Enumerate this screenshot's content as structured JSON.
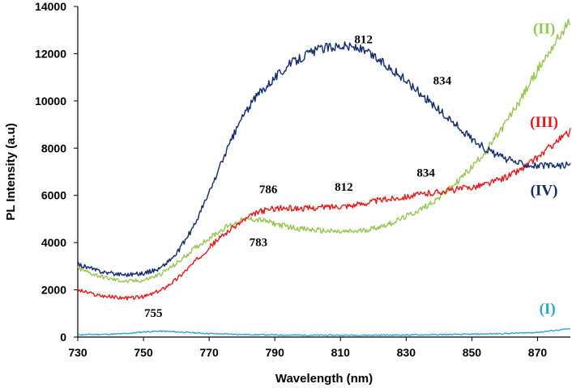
{
  "chart_data": {
    "type": "line",
    "xlabel": "Wavelength (nm)",
    "ylabel": "PL Intensity (a.u)",
    "xlim": [
      730,
      880
    ],
    "ylim": [
      0,
      14000
    ],
    "x_ticks": [
      730,
      750,
      770,
      790,
      810,
      830,
      850,
      870
    ],
    "y_ticks": [
      0,
      2000,
      4000,
      6000,
      8000,
      10000,
      12000,
      14000
    ],
    "grid": false,
    "legend": "none",
    "series": [
      {
        "name": "(I)",
        "color": "#2aa8d8",
        "x": [
          730,
          740,
          745,
          750,
          755,
          760,
          770,
          780,
          790,
          800,
          810,
          820,
          830,
          840,
          850,
          860,
          870,
          875,
          880
        ],
        "values": [
          100,
          120,
          150,
          220,
          250,
          220,
          150,
          110,
          90,
          80,
          80,
          80,
          90,
          100,
          120,
          150,
          200,
          280,
          350
        ]
      },
      {
        "name": "(II)",
        "color": "#92c84c",
        "x": [
          730,
          735,
          740,
          745,
          750,
          755,
          760,
          765,
          770,
          775,
          780,
          783,
          786,
          790,
          795,
          800,
          805,
          810,
          815,
          820,
          825,
          830,
          835,
          840,
          845,
          850,
          855,
          860,
          865,
          870,
          875,
          880
        ],
        "values": [
          2900,
          2650,
          2450,
          2350,
          2400,
          2650,
          3100,
          3700,
          4200,
          4650,
          4950,
          5000,
          4950,
          4800,
          4650,
          4550,
          4500,
          4450,
          4480,
          4600,
          4800,
          5100,
          5450,
          5900,
          6500,
          7200,
          8000,
          9000,
          10100,
          11300,
          12400,
          13400
        ]
      },
      {
        "name": "(III)",
        "color": "#e81818",
        "x": [
          730,
          735,
          740,
          745,
          750,
          755,
          760,
          765,
          770,
          775,
          780,
          785,
          790,
          795,
          800,
          805,
          810,
          815,
          820,
          825,
          830,
          835,
          840,
          845,
          850,
          855,
          860,
          865,
          870,
          875,
          880
        ],
        "values": [
          2000,
          1800,
          1700,
          1650,
          1700,
          1950,
          2450,
          3100,
          3800,
          4400,
          4900,
          5300,
          5450,
          5450,
          5450,
          5500,
          5550,
          5600,
          5750,
          5850,
          5950,
          6050,
          6150,
          6250,
          6350,
          6500,
          6750,
          7100,
          7600,
          8200,
          8700
        ]
      },
      {
        "name": "(IV)",
        "color": "#0f2a6e",
        "x": [
          730,
          735,
          740,
          745,
          750,
          755,
          760,
          765,
          770,
          775,
          780,
          785,
          790,
          795,
          800,
          805,
          810,
          815,
          820,
          825,
          830,
          835,
          840,
          845,
          850,
          855,
          860,
          865,
          870,
          875,
          880
        ],
        "values": [
          3100,
          2850,
          2700,
          2650,
          2700,
          2900,
          3500,
          4600,
          6100,
          7800,
          9300,
          10300,
          11000,
          11600,
          12000,
          12250,
          12350,
          12250,
          11900,
          11400,
          10850,
          10250,
          9600,
          9000,
          8400,
          7900,
          7550,
          7350,
          7250,
          7250,
          7300
        ]
      }
    ],
    "annotations": [
      {
        "text": "755",
        "x": 753,
        "y": 850
      },
      {
        "text": "783",
        "x": 785,
        "y": 3850
      },
      {
        "text": "786",
        "x": 788,
        "y": 6100
      },
      {
        "text": "812",
        "x": 811,
        "y": 6200
      },
      {
        "text": "834",
        "x": 836,
        "y": 6800
      },
      {
        "text": "812",
        "x": 817,
        "y": 12450
      },
      {
        "text": "834",
        "x": 841,
        "y": 10700
      }
    ],
    "series_labels": [
      {
        "text": "(I)",
        "color": "#2aa8d8",
        "x": 873,
        "y": 1000
      },
      {
        "text": "(II)",
        "color": "#92c84c",
        "x": 872,
        "y": 12850
      },
      {
        "text": "(III)",
        "color": "#e81818",
        "x": 872,
        "y": 8900
      },
      {
        "text": "(IV)",
        "color": "#0f2a6e",
        "x": 872,
        "y": 6000
      }
    ]
  }
}
